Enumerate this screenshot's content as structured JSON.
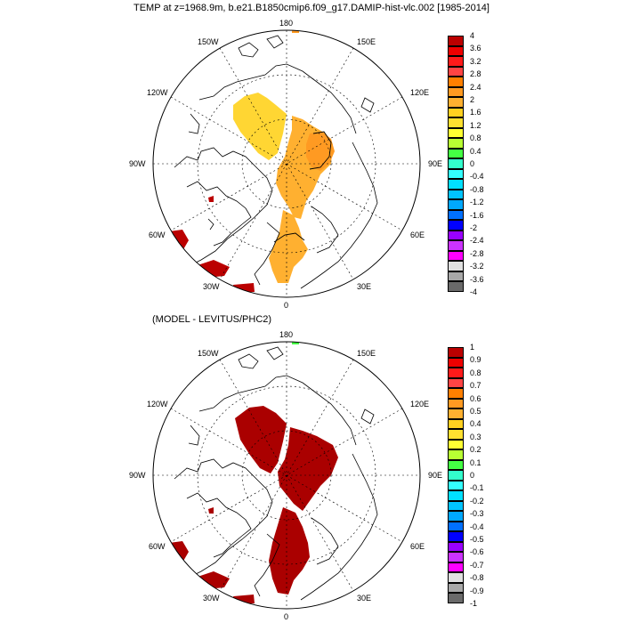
{
  "title": "TEMP at z=1968.9m, b.e21.B1850cmip6.f09_g17.DAMIP-hist-vlc.002 [1985-2014]",
  "subtitle": "(MODEL - LEVITUS/PHC2)",
  "panels": [
    {
      "longitude_labels": {
        "top": "180",
        "bottom": "0",
        "upper_left": "150W",
        "upper_right": "150E",
        "mid_upper_left": "120W",
        "mid_upper_right": "120E",
        "left": "90W",
        "right": "90E",
        "mid_lower_left": "60W",
        "mid_lower_right": "60E",
        "lower_left": "30W",
        "lower_right": "30E"
      },
      "colorbar": {
        "labels": [
          "4",
          "3.6",
          "3.2",
          "2.8",
          "2.4",
          "2",
          "1.6",
          "1.2",
          "0.8",
          "0.4",
          "0",
          "-0.4",
          "-0.8",
          "-1.2",
          "-1.6",
          "-2",
          "-2.4",
          "-2.8",
          "-3.2",
          "-3.6",
          "-4"
        ],
        "colors": [
          "#bb0000",
          "#ee0000",
          "#ff1a1a",
          "#ff4444",
          "#ff7f00",
          "#ff9a22",
          "#ffb030",
          "#ffd020",
          "#ffe030",
          "#ffff33",
          "#b8ff33",
          "#44ff44",
          "#33ffcc",
          "#33ffff",
          "#00e0ff",
          "#00c4ff",
          "#00a8ff",
          "#0070ff",
          "#0000ff",
          "#9900ff",
          "#cc33ff",
          "#ff00ff",
          "#e0e0e0",
          "#a8a8a8",
          "#6a6a6a"
        ]
      }
    },
    {
      "longitude_labels": {
        "top": "180",
        "bottom": "0",
        "upper_left": "150W",
        "upper_right": "150E",
        "mid_upper_left": "120W",
        "mid_upper_right": "120E",
        "left": "90W",
        "right": "90E",
        "mid_lower_left": "60W",
        "mid_lower_right": "60E",
        "lower_left": "30W",
        "lower_right": "30E"
      },
      "colorbar": {
        "labels": [
          "1",
          "0.9",
          "0.8",
          "0.7",
          "0.6",
          "0.5",
          "0.4",
          "0.3",
          "0.2",
          "0.1",
          "0",
          "-0.1",
          "-0.2",
          "-0.3",
          "-0.4",
          "-0.5",
          "-0.6",
          "-0.7",
          "-0.8",
          "-0.9",
          "-1"
        ],
        "colors": [
          "#bb0000",
          "#ee0000",
          "#ff1a1a",
          "#ff4444",
          "#ff7f00",
          "#ff9a22",
          "#ffb030",
          "#ffd020",
          "#ffe030",
          "#ffff33",
          "#b8ff33",
          "#44ff44",
          "#33ffcc",
          "#33ffff",
          "#00e0ff",
          "#00c4ff",
          "#00a8ff",
          "#0070ff",
          "#0000ff",
          "#9900ff",
          "#cc33ff",
          "#ff00ff",
          "#e0e0e0",
          "#a8a8a8",
          "#6a6a6a"
        ]
      }
    }
  ]
}
